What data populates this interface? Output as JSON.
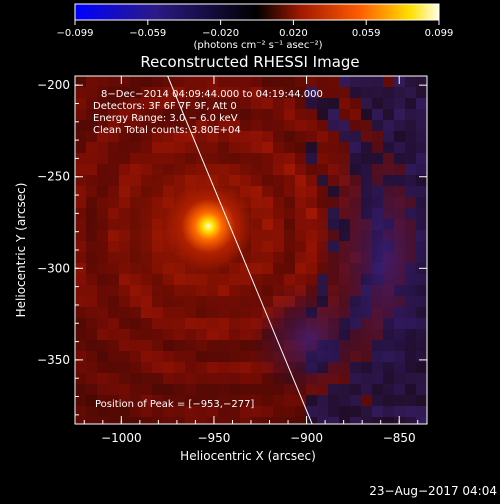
{
  "colorbar": {
    "tick_labels": [
      "−0.099",
      "−0.059",
      "−0.020",
      "0.020",
      "0.059",
      "0.099"
    ],
    "unit_label": "(photons cm⁻² s⁻¹ asec⁻²)",
    "colors": [
      "#0000ff",
      "#2b1a86",
      "#000000",
      "#a01900",
      "#ff5a00",
      "#ffe000",
      "#ffffe6"
    ]
  },
  "plot": {
    "title": "Reconstructed RHESSI Image",
    "info_lines": [
      "8−Dec−2014 04:09:44.000 to 04:19:44.000",
      "Detectors: 3F 6F 7F 9F, Att 0",
      "Energy Range: 3.0 − 6.0 keV",
      "Clean     Total counts: 3.80E+04"
    ],
    "peak_text": "Position of Peak = [−953,−277]",
    "x_label": "Heliocentric X (arcsec)",
    "y_label": "Heliocentric Y (arcsec)",
    "x_ticks": [
      "−1000",
      "−950",
      "−900",
      "−850"
    ],
    "y_ticks": [
      "−200",
      "−250",
      "−300",
      "−350"
    ],
    "x_range": [
      -1025,
      -835
    ],
    "y_range": [
      -385,
      -195
    ],
    "peak": {
      "x": -953,
      "y": -277
    },
    "limb_line": {
      "start": [
        -975,
        -195
      ],
      "end": [
        -897,
        -385
      ]
    }
  },
  "footer": {
    "date_text": "23−Aug−2017 04:04"
  }
}
